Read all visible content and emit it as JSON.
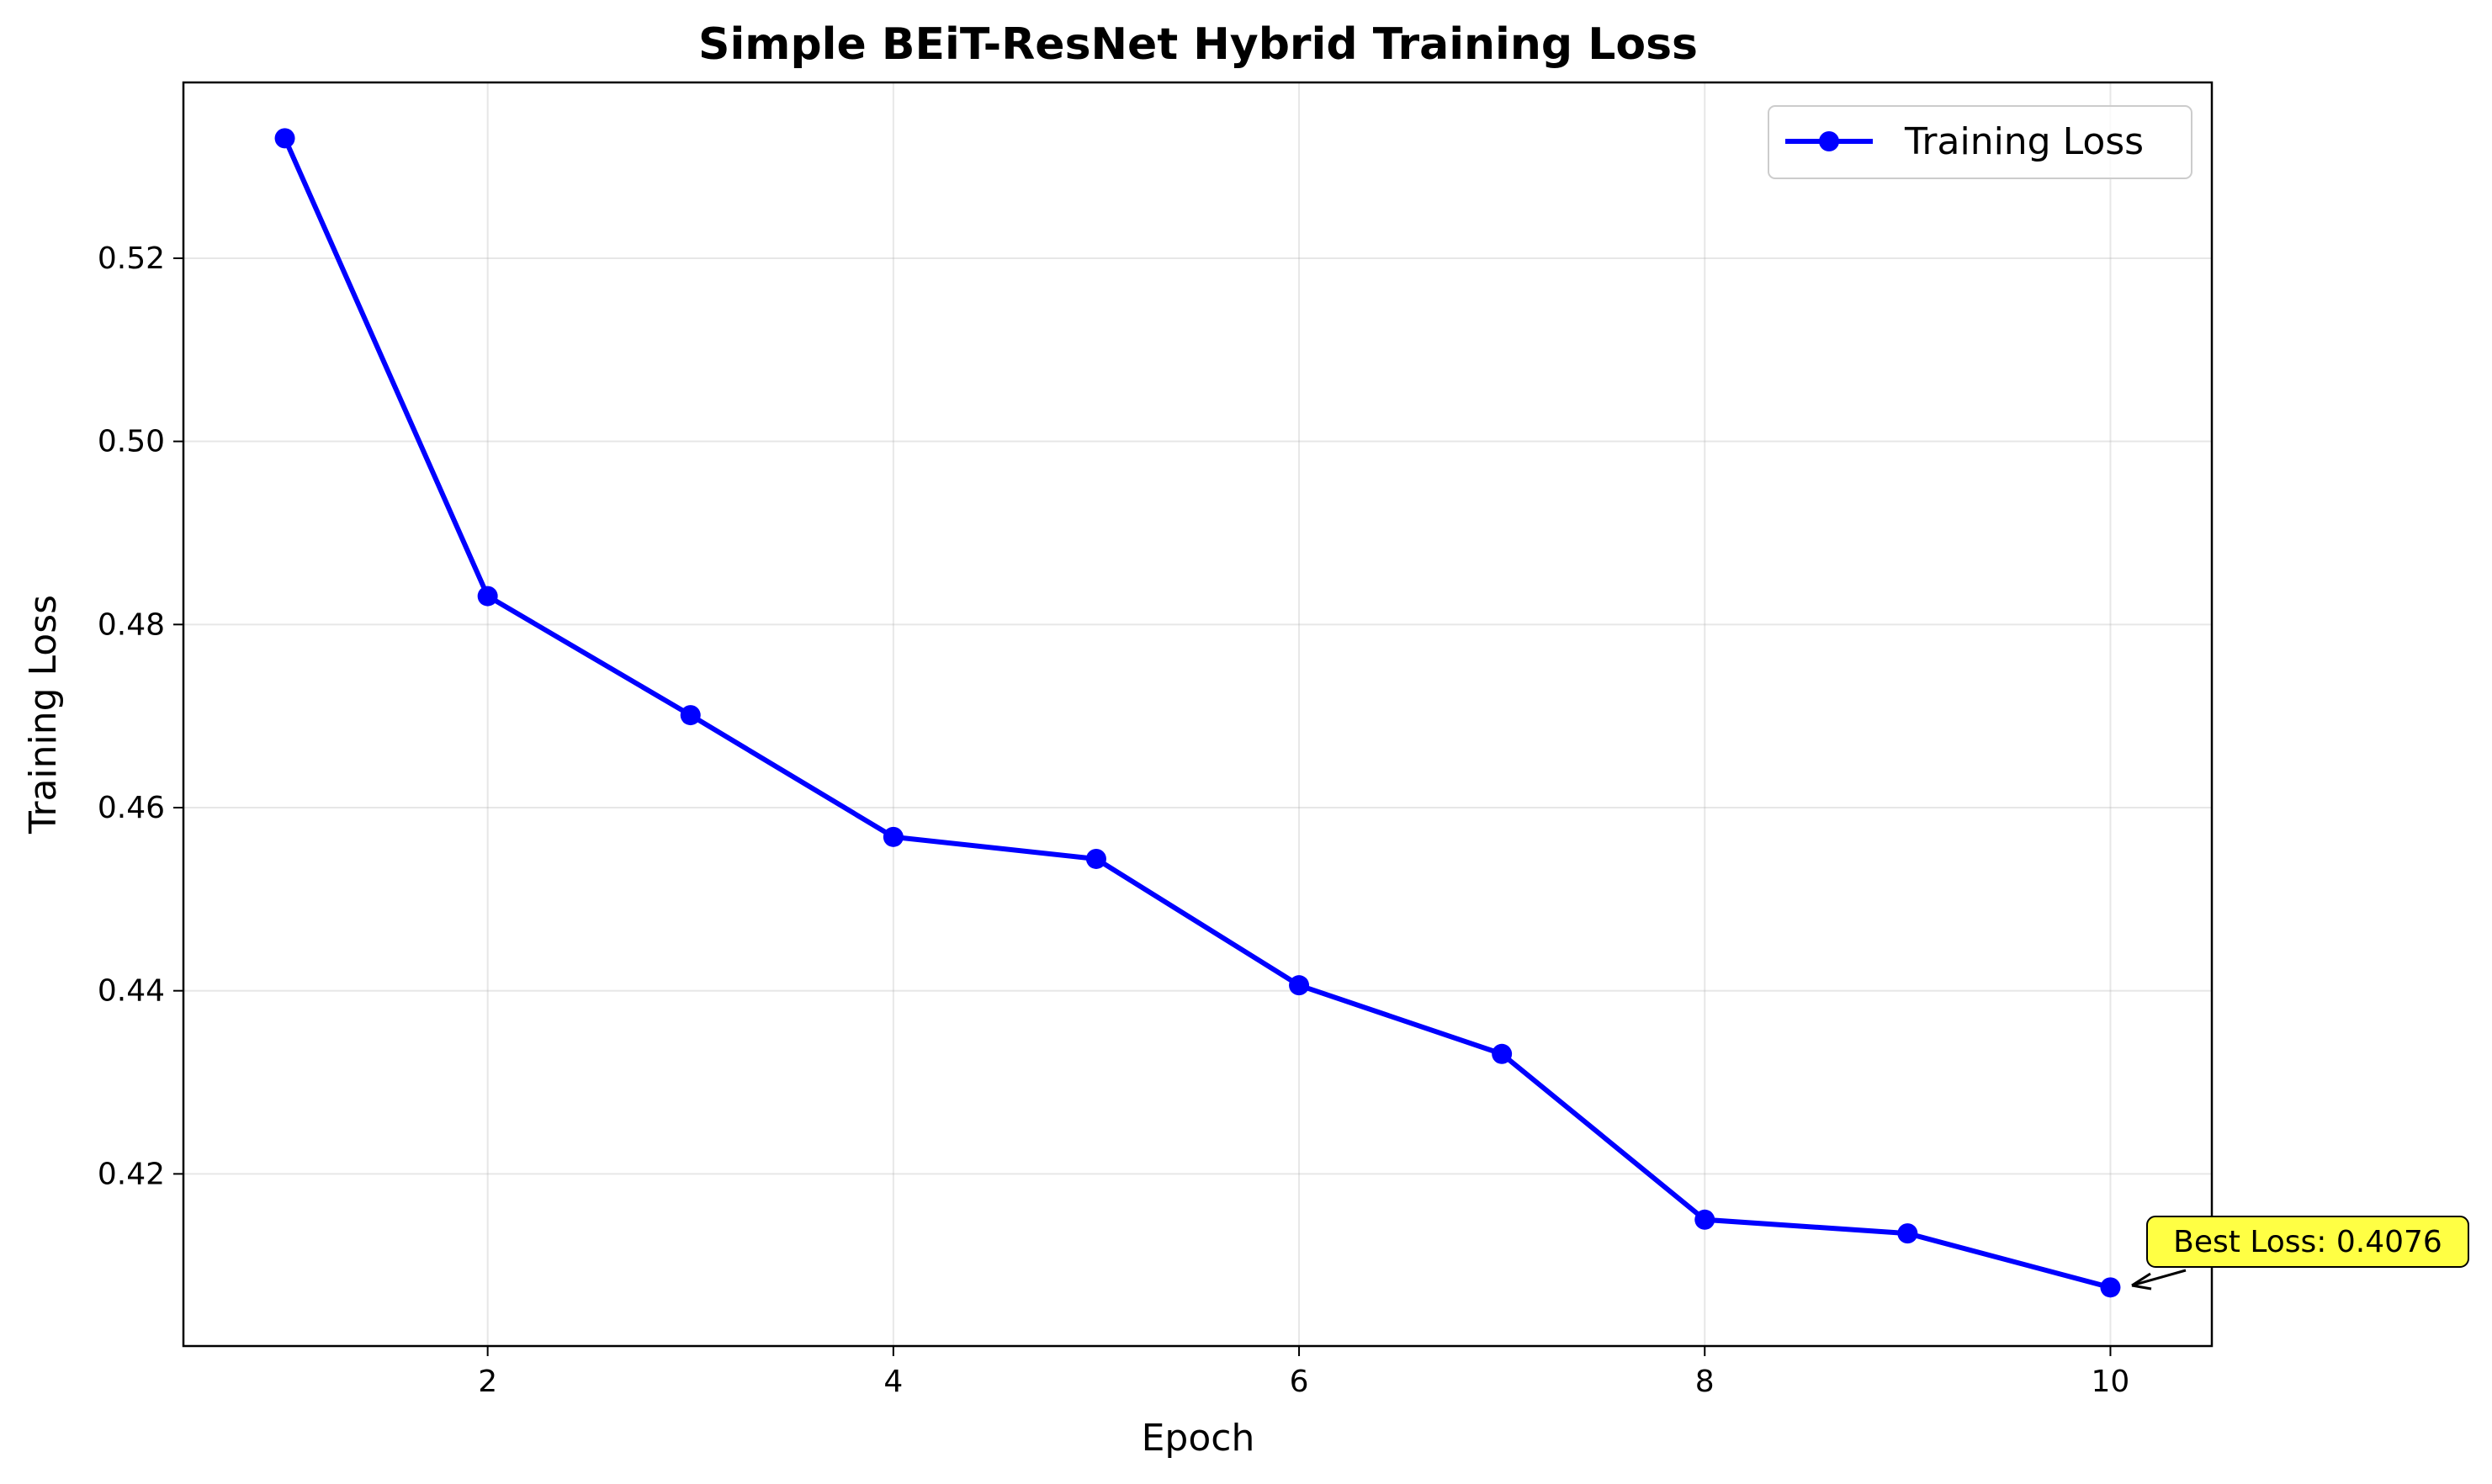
{
  "chart_data": {
    "type": "line",
    "title": "Simple BEiT-ResNet Hybrid Training Loss",
    "xlabel": "Epoch",
    "ylabel": "Training Loss",
    "xlim": [
      0.5,
      10.5
    ],
    "ylim": [
      0.4012,
      0.5392
    ],
    "xticks": [
      2,
      4,
      6,
      8,
      10
    ],
    "xtick_labels": [
      "2",
      "4",
      "6",
      "8",
      "10"
    ],
    "yticks": [
      0.42,
      0.44,
      0.46,
      0.48,
      0.5,
      0.52
    ],
    "ytick_labels": [
      "0.42",
      "0.44",
      "0.46",
      "0.48",
      "0.50",
      "0.52"
    ],
    "grid": true,
    "legend_position": "top-right",
    "series": [
      {
        "name": "Training Loss",
        "color": "#0000ff",
        "marker": "circle",
        "x": [
          1,
          2,
          3,
          4,
          5,
          6,
          7,
          8,
          9,
          10
        ],
        "y": [
          0.5331,
          0.4831,
          0.4701,
          0.4568,
          0.4544,
          0.4406,
          0.4331,
          0.415,
          0.4135,
          0.4076
        ]
      }
    ],
    "annotations": [
      {
        "text": "Best Loss: 0.4076",
        "x": 10,
        "y": 0.4076,
        "box_color": "#ffff44"
      }
    ]
  }
}
